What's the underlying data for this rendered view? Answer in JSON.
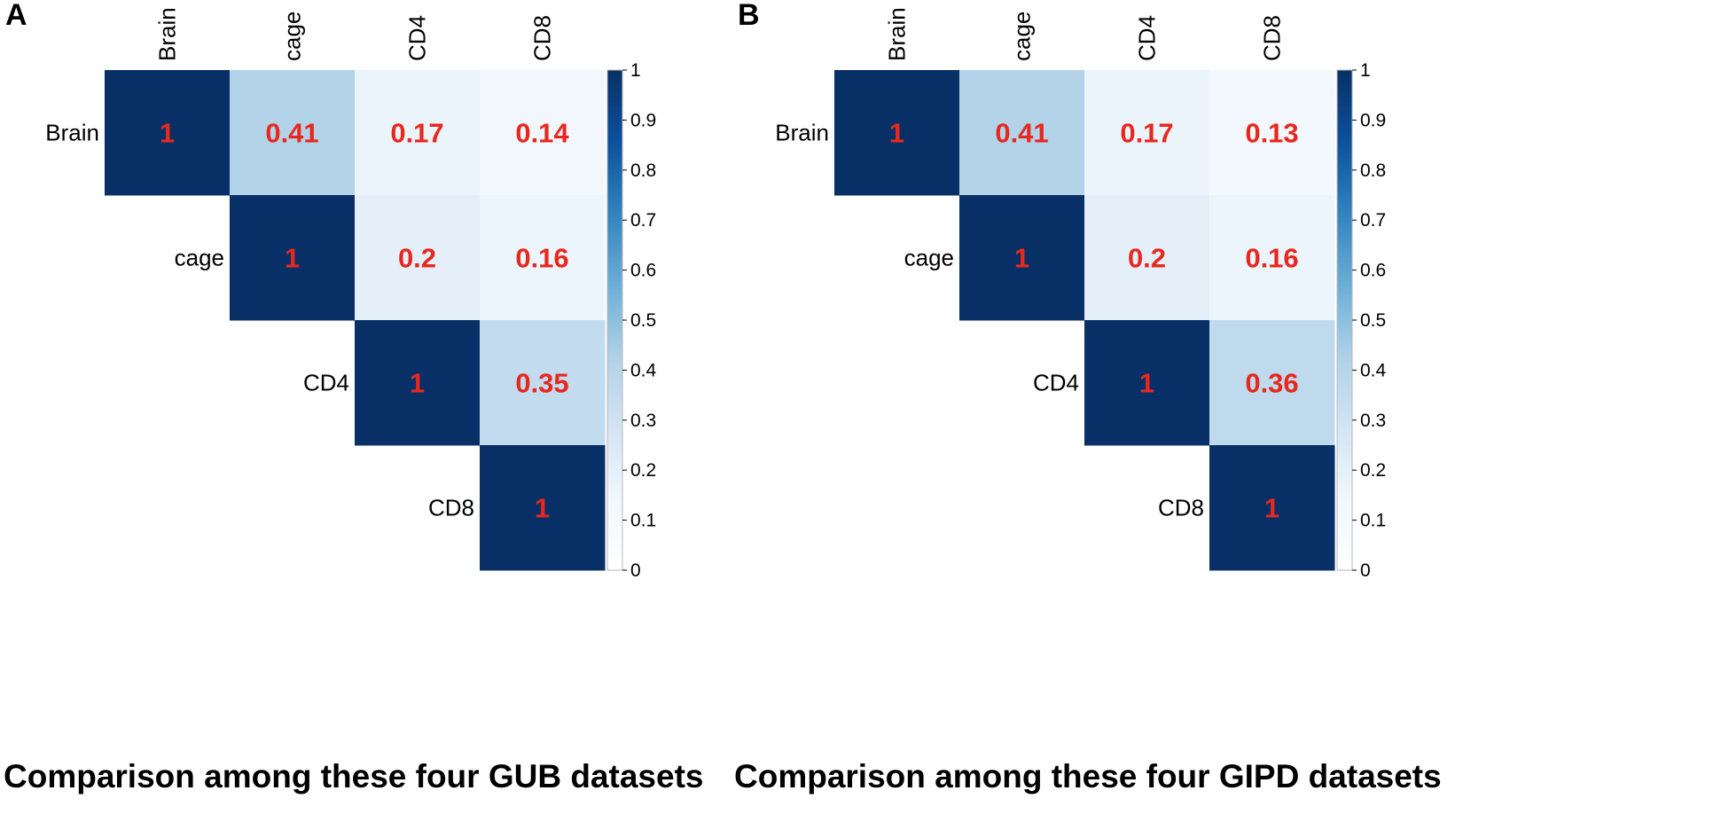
{
  "figure": {
    "colors": {
      "value_text": "#e8281e",
      "colorbar_stops": [
        "#ffffff",
        "#f1f7fd",
        "#d3e4f3",
        "#aed1e7",
        "#6baed6",
        "#3282bd",
        "#0b519c",
        "#083066"
      ]
    }
  },
  "chart_data": [
    {
      "type": "heatmap",
      "panel_label": "A",
      "title": "Comparison among these four GUB datasets",
      "row_labels": [
        "Brain",
        "cage",
        "CD4",
        "CD8"
      ],
      "col_labels": [
        "Brain",
        "cage",
        "CD4",
        "CD8"
      ],
      "layout": "upper-triangle",
      "values": [
        [
          1,
          0.41,
          0.17,
          0.14
        ],
        [
          null,
          1,
          0.2,
          0.16
        ],
        [
          null,
          null,
          1,
          0.35
        ],
        [
          null,
          null,
          null,
          1
        ]
      ],
      "value_labels": [
        [
          "1",
          "0.41",
          "0.17",
          "0.14"
        ],
        [
          null,
          "1",
          "0.2",
          "0.16"
        ],
        [
          null,
          null,
          "1",
          "0.35"
        ],
        [
          null,
          null,
          null,
          "1"
        ]
      ],
      "colorbar": {
        "range": [
          0,
          1
        ],
        "ticks": [
          "1",
          "0.9",
          "0.8",
          "0.7",
          "0.6",
          "0.5",
          "0.4",
          "0.3",
          "0.2",
          "0.1",
          "0"
        ]
      }
    },
    {
      "type": "heatmap",
      "panel_label": "B",
      "title": "Comparison among these four GIPD datasets",
      "row_labels": [
        "Brain",
        "cage",
        "CD4",
        "CD8"
      ],
      "col_labels": [
        "Brain",
        "cage",
        "CD4",
        "CD8"
      ],
      "layout": "upper-triangle",
      "values": [
        [
          1,
          0.41,
          0.17,
          0.13
        ],
        [
          null,
          1,
          0.2,
          0.16
        ],
        [
          null,
          null,
          1,
          0.36
        ],
        [
          null,
          null,
          null,
          1
        ]
      ],
      "value_labels": [
        [
          "1",
          "0.41",
          "0.17",
          "0.13"
        ],
        [
          null,
          "1",
          "0.2",
          "0.16"
        ],
        [
          null,
          null,
          "1",
          "0.36"
        ],
        [
          null,
          null,
          null,
          "1"
        ]
      ],
      "colorbar": {
        "range": [
          0,
          1
        ],
        "ticks": [
          "1",
          "0.9",
          "0.8",
          "0.7",
          "0.6",
          "0.5",
          "0.4",
          "0.3",
          "0.2",
          "0.1",
          "0"
        ]
      }
    }
  ]
}
